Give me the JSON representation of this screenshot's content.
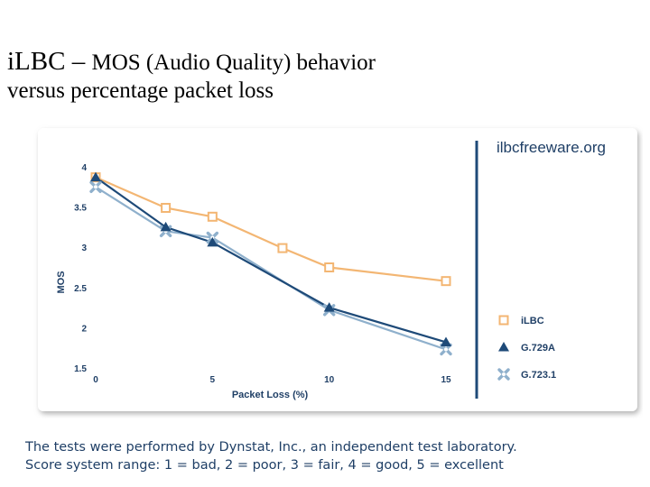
{
  "slide": {
    "title_part1": "iLBC – ",
    "title_part2": "MOS (Audio Quality) behavior",
    "title_line2": "versus percentage packet loss",
    "footnote_line1": "The tests were performed by Dynstat, Inc., an independent test laboratory.",
    "footnote_line2": "Score system range: 1 = bad, 2 = poor, 3 = fair, 4 = good, 5 = excellent"
  },
  "chart_data": {
    "type": "line",
    "brand": "ilbcfreeware.org",
    "xlabel": "Packet Loss (%)",
    "ylabel": "MOS",
    "x_ticks": [
      "0",
      "5",
      "10",
      "15"
    ],
    "y_ticks": [
      "4",
      "3.5",
      "3",
      "2.5",
      "2",
      "1.5"
    ],
    "xlim": [
      0,
      15
    ],
    "ylim": [
      1.5,
      4
    ],
    "legend_position": "right",
    "grid": false,
    "series": [
      {
        "name": "iLBC",
        "marker": "square",
        "color": "#f3b673",
        "x": [
          0,
          3,
          5,
          8,
          10,
          15
        ],
        "y": [
          3.87,
          3.49,
          3.38,
          2.99,
          2.75,
          2.58
        ]
      },
      {
        "name": "G.729A",
        "marker": "triangle",
        "color": "#1e4a78",
        "x": [
          0,
          3,
          5,
          10,
          15
        ],
        "y": [
          3.87,
          3.25,
          3.06,
          2.25,
          1.82
        ]
      },
      {
        "name": "G.723.1",
        "marker": "cross",
        "color": "#8fb0cc",
        "x": [
          0,
          3,
          5,
          10,
          15
        ],
        "y": [
          3.75,
          3.2,
          3.12,
          2.22,
          1.73
        ]
      }
    ]
  }
}
